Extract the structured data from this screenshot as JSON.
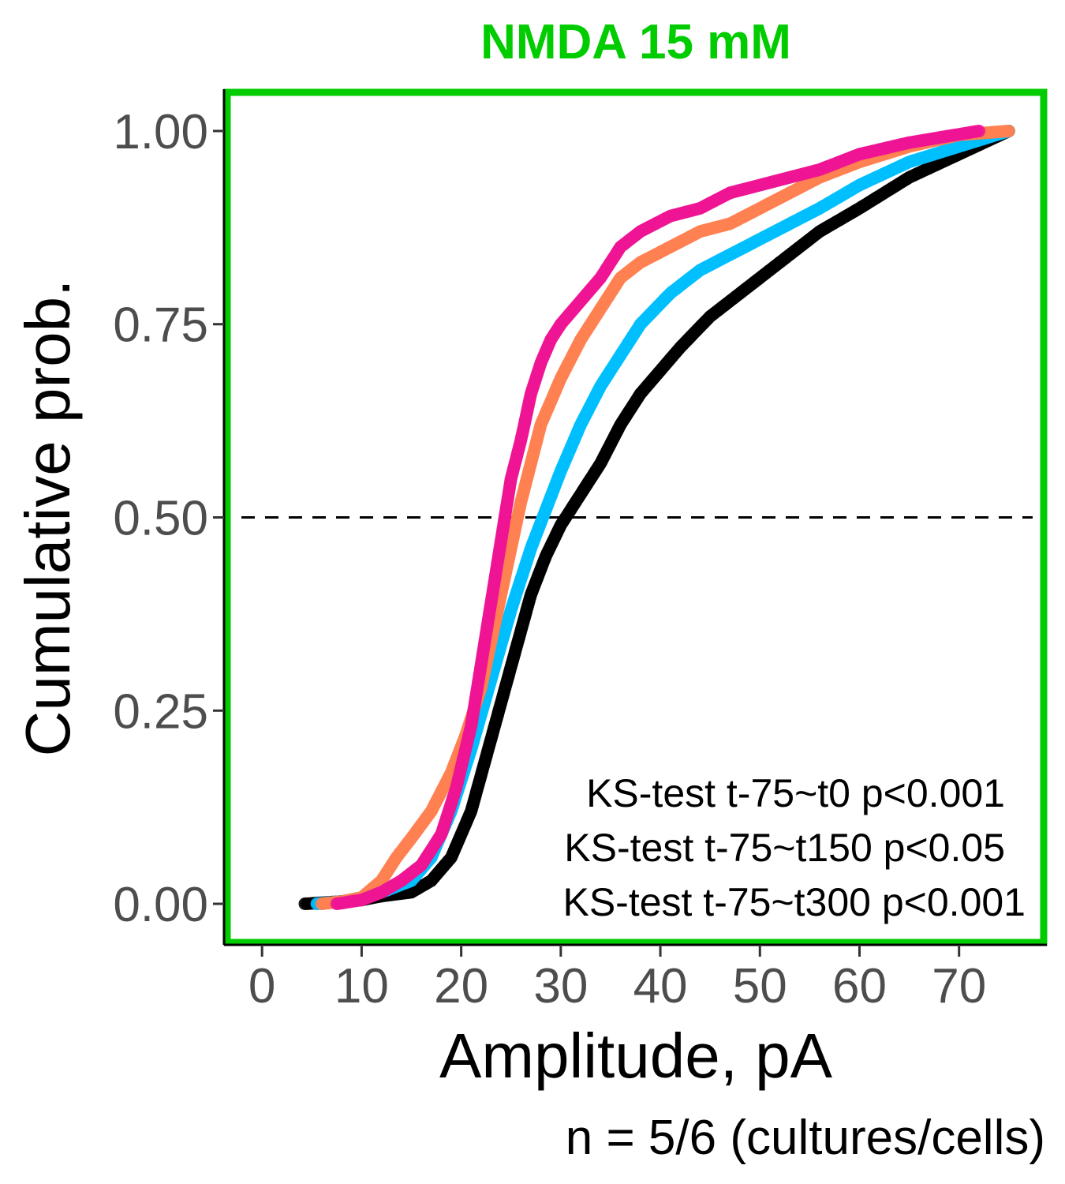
{
  "chart_data": {
    "type": "scatter",
    "title": "NMDA 15 mM",
    "title_color": "#00cc00",
    "frame_color": "#00cc00",
    "xlabel": "Amplitude, pA",
    "ylabel": "Cumulative prob.",
    "xlim": [
      -3.5,
      78.5
    ],
    "ylim": [
      -0.05,
      1.05
    ],
    "x_ticks": [
      0,
      10,
      20,
      30,
      40,
      50,
      60,
      70
    ],
    "x_tick_labels": [
      "0",
      "10",
      "20",
      "30",
      "40",
      "50",
      "60",
      "70"
    ],
    "y_ticks": [
      0,
      0.25,
      0.5,
      0.75,
      1.0
    ],
    "y_tick_labels": [
      "0.00",
      "0.25",
      "0.50",
      "0.75",
      "1.00"
    ],
    "reference_line": {
      "y": 0.5,
      "style": "dashed",
      "color": "#000000"
    },
    "grid": false,
    "annotations": [
      "KS-test t-75~t0 p<0.001",
      "KS-test t-75~t150 p<0.05",
      "KS-test t-75~t300 p<0.001"
    ],
    "footnote": "n = 5/6 (cultures/cells)",
    "series": [
      {
        "color": "#000000",
        "x": [
          4.3,
          8,
          10,
          12,
          15,
          17,
          19,
          21,
          22.5,
          24,
          25.5,
          27,
          28.5,
          30,
          32,
          34,
          36,
          38,
          40,
          42,
          45,
          48,
          50,
          53,
          56,
          60,
          65,
          70,
          75
        ],
        "y": [
          0.0,
          0.003,
          0.005,
          0.01,
          0.015,
          0.03,
          0.06,
          0.12,
          0.19,
          0.26,
          0.33,
          0.4,
          0.45,
          0.49,
          0.53,
          0.57,
          0.62,
          0.66,
          0.69,
          0.72,
          0.76,
          0.79,
          0.81,
          0.84,
          0.87,
          0.9,
          0.94,
          0.97,
          1.0
        ]
      },
      {
        "color": "#00bfff",
        "x": [
          5.5,
          8,
          10,
          12,
          15,
          17,
          19,
          21,
          23,
          25,
          27,
          28.5,
          30,
          32,
          34,
          36,
          38,
          41,
          44,
          47,
          50,
          53,
          56,
          60,
          65,
          70,
          75
        ],
        "y": [
          0.0,
          0.003,
          0.008,
          0.015,
          0.03,
          0.06,
          0.12,
          0.2,
          0.29,
          0.38,
          0.46,
          0.51,
          0.56,
          0.62,
          0.67,
          0.71,
          0.75,
          0.79,
          0.82,
          0.84,
          0.86,
          0.88,
          0.9,
          0.93,
          0.96,
          0.98,
          1.0
        ]
      },
      {
        "color": "#ff7f50",
        "x": [
          6,
          8,
          10,
          12,
          13.5,
          15,
          17,
          19,
          20.5,
          22,
          23,
          24,
          25,
          26,
          27,
          28,
          30,
          32,
          34,
          36,
          38,
          41,
          44,
          47,
          50,
          53,
          56,
          60,
          65,
          70,
          75
        ],
        "y": [
          0.0,
          0.003,
          0.008,
          0.03,
          0.06,
          0.085,
          0.12,
          0.17,
          0.22,
          0.28,
          0.34,
          0.4,
          0.46,
          0.52,
          0.57,
          0.62,
          0.68,
          0.73,
          0.77,
          0.81,
          0.83,
          0.85,
          0.87,
          0.88,
          0.9,
          0.92,
          0.94,
          0.96,
          0.98,
          0.995,
          1.0
        ]
      },
      {
        "color": "#ee1493",
        "x": [
          7.5,
          10,
          12,
          14,
          16,
          18,
          19.5,
          21,
          22,
          23,
          24,
          25,
          26,
          27,
          28,
          29,
          30,
          32,
          34,
          36,
          38,
          41,
          44,
          47,
          50,
          53,
          56,
          60,
          65,
          72
        ],
        "y": [
          0.0,
          0.005,
          0.015,
          0.03,
          0.05,
          0.09,
          0.15,
          0.23,
          0.31,
          0.39,
          0.47,
          0.55,
          0.6,
          0.66,
          0.7,
          0.73,
          0.75,
          0.78,
          0.81,
          0.85,
          0.87,
          0.89,
          0.9,
          0.92,
          0.93,
          0.94,
          0.95,
          0.97,
          0.985,
          1.0
        ]
      }
    ]
  }
}
